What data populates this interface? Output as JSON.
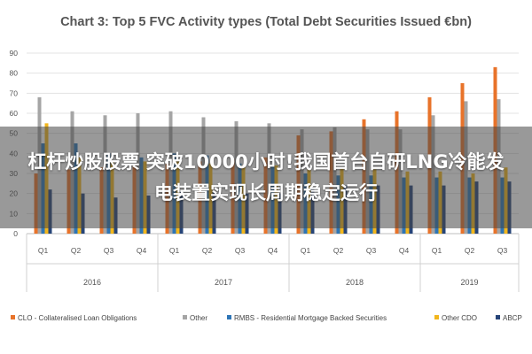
{
  "overlay": {
    "text": "杠杆炒股股票 突破10000小时!我国首台自研LNG冷能发电装置实现长周期稳定运行"
  },
  "chart_data": {
    "type": "bar",
    "title": "Chart 3: Top 5 FVC Activity types (Total Debt Securities Issued €bn)",
    "xlabel": "",
    "ylabel": "",
    "ylim": [
      0,
      90
    ],
    "yticks": [
      0,
      10,
      20,
      30,
      40,
      50,
      60,
      70,
      80,
      90
    ],
    "grid": true,
    "legend_position": "bottom",
    "categories": [
      "Q1",
      "Q2",
      "Q3",
      "Q4",
      "Q1",
      "Q2",
      "Q3",
      "Q4",
      "Q1",
      "Q2",
      "Q3",
      "Q4",
      "Q1",
      "Q2",
      "Q3"
    ],
    "year_groups": [
      {
        "label": "2016",
        "count": 4
      },
      {
        "label": "2017",
        "count": 4
      },
      {
        "label": "2018",
        "count": 4
      },
      {
        "label": "2019",
        "count": 3
      }
    ],
    "series": [
      {
        "name": "CLO - Collateralised Loan Obligations",
        "color": "#E8732A",
        "values": [
          30,
          32,
          33,
          34,
          35,
          36,
          37,
          38,
          49,
          51,
          57,
          61,
          68,
          75,
          83
        ]
      },
      {
        "name": "Other",
        "color": "#A5A5A5",
        "values": [
          68,
          61,
          59,
          60,
          61,
          58,
          56,
          55,
          52,
          53,
          52,
          52,
          59,
          66,
          67
        ]
      },
      {
        "name": "RMBS - Residential Mortgage Backed Securities",
        "color": "#2E75B6",
        "values": [
          45,
          45,
          40,
          38,
          40,
          39,
          35,
          34,
          30,
          29,
          29,
          28,
          28,
          28,
          28
        ]
      },
      {
        "name": "Other CDO",
        "color": "#F2B61C",
        "values": [
          55,
          38,
          36,
          36,
          36,
          35,
          34,
          34,
          32,
          33,
          32,
          31,
          31,
          30,
          33
        ]
      },
      {
        "name": "ABCP",
        "color": "#264478",
        "values": [
          22,
          20,
          18,
          19,
          21,
          21,
          20,
          20,
          23,
          24,
          24,
          24,
          24,
          26,
          26
        ]
      }
    ]
  }
}
